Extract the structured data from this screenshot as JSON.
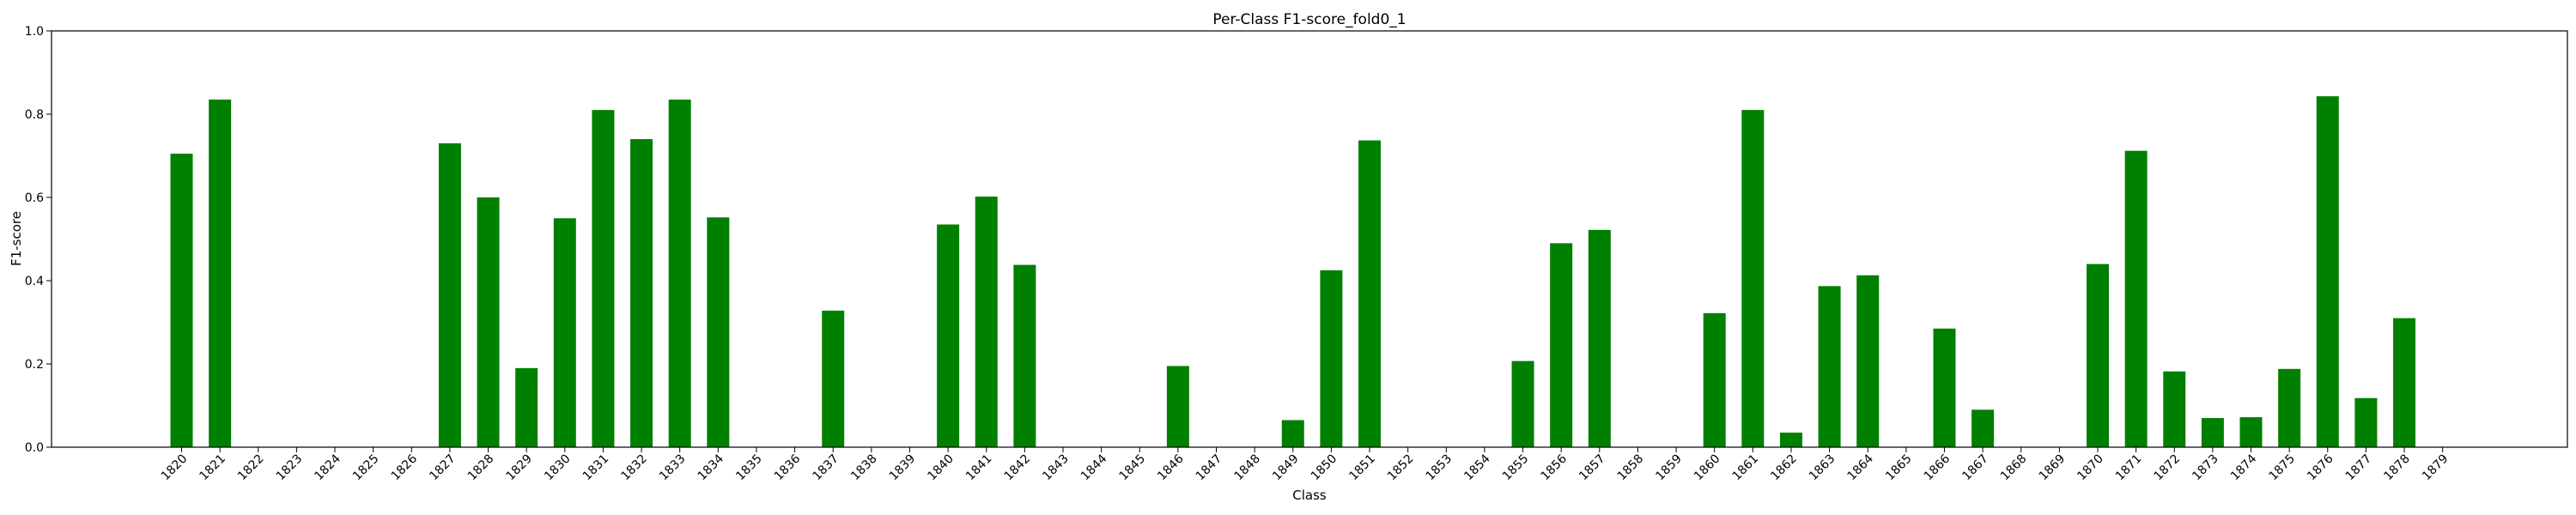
{
  "chart_data": {
    "type": "bar",
    "title": "Per-Class F1-score_fold0_1",
    "xlabel": "Class",
    "ylabel": "F1-score",
    "ylim": [
      0,
      1
    ],
    "yticks": [
      "0.0",
      "0.2",
      "0.4",
      "0.6",
      "0.8",
      "1.0"
    ],
    "grid": false,
    "bar_color": "#008000",
    "categories": [
      "1820",
      "1821",
      "1822",
      "1823",
      "1824",
      "1825",
      "1826",
      "1827",
      "1828",
      "1829",
      "1830",
      "1831",
      "1832",
      "1833",
      "1834",
      "1835",
      "1836",
      "1837",
      "1838",
      "1839",
      "1840",
      "1841",
      "1842",
      "1843",
      "1844",
      "1845",
      "1846",
      "1847",
      "1848",
      "1849",
      "1850",
      "1851",
      "1852",
      "1853",
      "1854",
      "1855",
      "1856",
      "1857",
      "1858",
      "1859",
      "1860",
      "1861",
      "1862",
      "1863",
      "1864",
      "1865",
      "1866",
      "1867",
      "1868",
      "1869",
      "1870",
      "1871",
      "1872",
      "1873",
      "1874",
      "1875",
      "1876",
      "1877",
      "1878",
      "1879"
    ],
    "values": [
      0.705,
      0.835,
      0,
      0,
      0,
      0,
      0,
      0.73,
      0.6,
      0.19,
      0.55,
      0.81,
      0.74,
      0.835,
      0.552,
      0,
      0,
      0.328,
      0,
      0,
      0.535,
      0.602,
      0.438,
      0,
      0,
      0,
      0.195,
      0,
      0,
      0.065,
      0.425,
      0.737,
      0,
      0,
      0,
      0.207,
      0.49,
      0.522,
      0,
      0,
      0.322,
      0.81,
      0.035,
      0.387,
      0.413,
      0,
      0.285,
      0.09,
      0,
      0,
      0.44,
      0.712,
      0.182,
      0.07,
      0.072,
      0.188,
      0.843,
      0.118,
      0.31,
      0
    ]
  }
}
